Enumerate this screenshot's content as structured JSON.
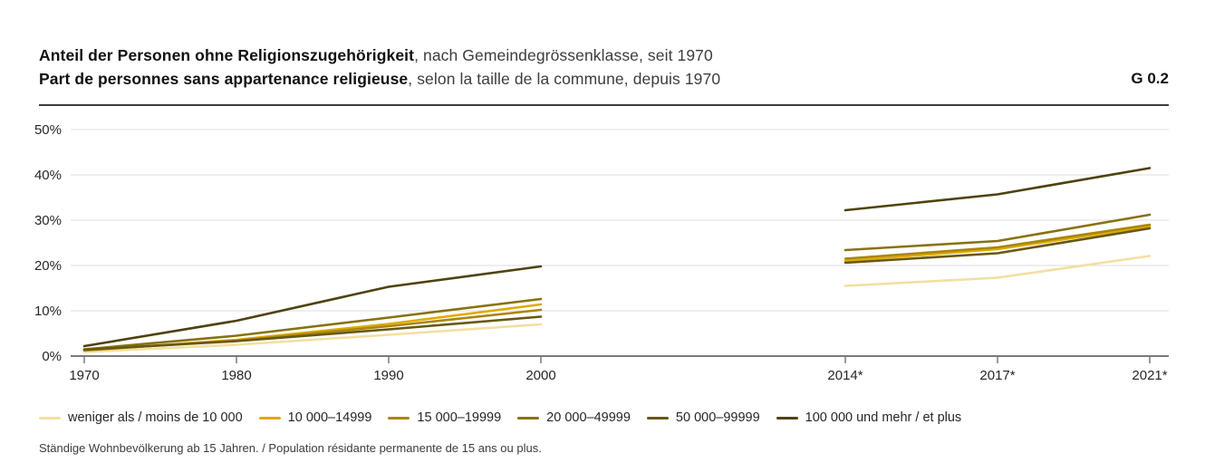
{
  "header": {
    "title_de_bold": "Anteil der Personen ohne Religionszugehörigkeit",
    "title_de_rest": ", nach Gemeindegrössenklasse, seit 1970",
    "title_fr_bold": "Part de personnes sans appartenance religieuse",
    "title_fr_rest": ", selon la taille de la commune, depuis 1970",
    "figure_code": "G 0.2"
  },
  "chart_data": {
    "type": "line",
    "title": "Anteil der Personen ohne Religionszugehörigkeit / Part de personnes sans appartenance religieuse",
    "x": [
      1970,
      1980,
      1990,
      2000,
      2014,
      2017,
      2021
    ],
    "x_tick_labels": [
      "1970",
      "1980",
      "1990",
      "2000",
      "2014*",
      "2017*",
      "2021*"
    ],
    "gap_between": [
      2000,
      2014
    ],
    "y_ticks": [
      "0%",
      "10%",
      "20%",
      "30%",
      "40%",
      "50%"
    ],
    "ylim": [
      0,
      50
    ],
    "grid": true,
    "legend_position": "bottom",
    "series": [
      {
        "name": "weniger als / moins de 10 000",
        "color": "#f3dfa0",
        "values": [
          0.9,
          2.5,
          4.7,
          7.0,
          15.5,
          17.3,
          22.1
        ]
      },
      {
        "name": "10 000–14999",
        "color": "#e0aa00",
        "values": [
          1.2,
          3.6,
          7.1,
          11.4,
          21.0,
          23.6,
          28.6
        ]
      },
      {
        "name": "15 000–19999",
        "color": "#a9860d",
        "values": [
          1.3,
          3.4,
          6.6,
          10.2,
          21.5,
          24.0,
          29.0
        ]
      },
      {
        "name": "20 000–49999",
        "color": "#887111",
        "values": [
          1.5,
          4.5,
          8.5,
          12.6,
          23.4,
          25.4,
          31.2
        ]
      },
      {
        "name": "50 000–99999",
        "color": "#675811",
        "values": [
          1.4,
          3.3,
          5.9,
          8.7,
          20.6,
          22.7,
          28.2
        ]
      },
      {
        "name": "100 000 und mehr / et plus",
        "color": "#4e420e",
        "values": [
          2.2,
          7.8,
          15.3,
          19.8,
          32.2,
          35.7,
          41.5
        ]
      }
    ]
  },
  "footnote": "Ständige Wohnbevölkerung ab 15 Jahren. / Population résidante permanente de 15 ans ou plus."
}
